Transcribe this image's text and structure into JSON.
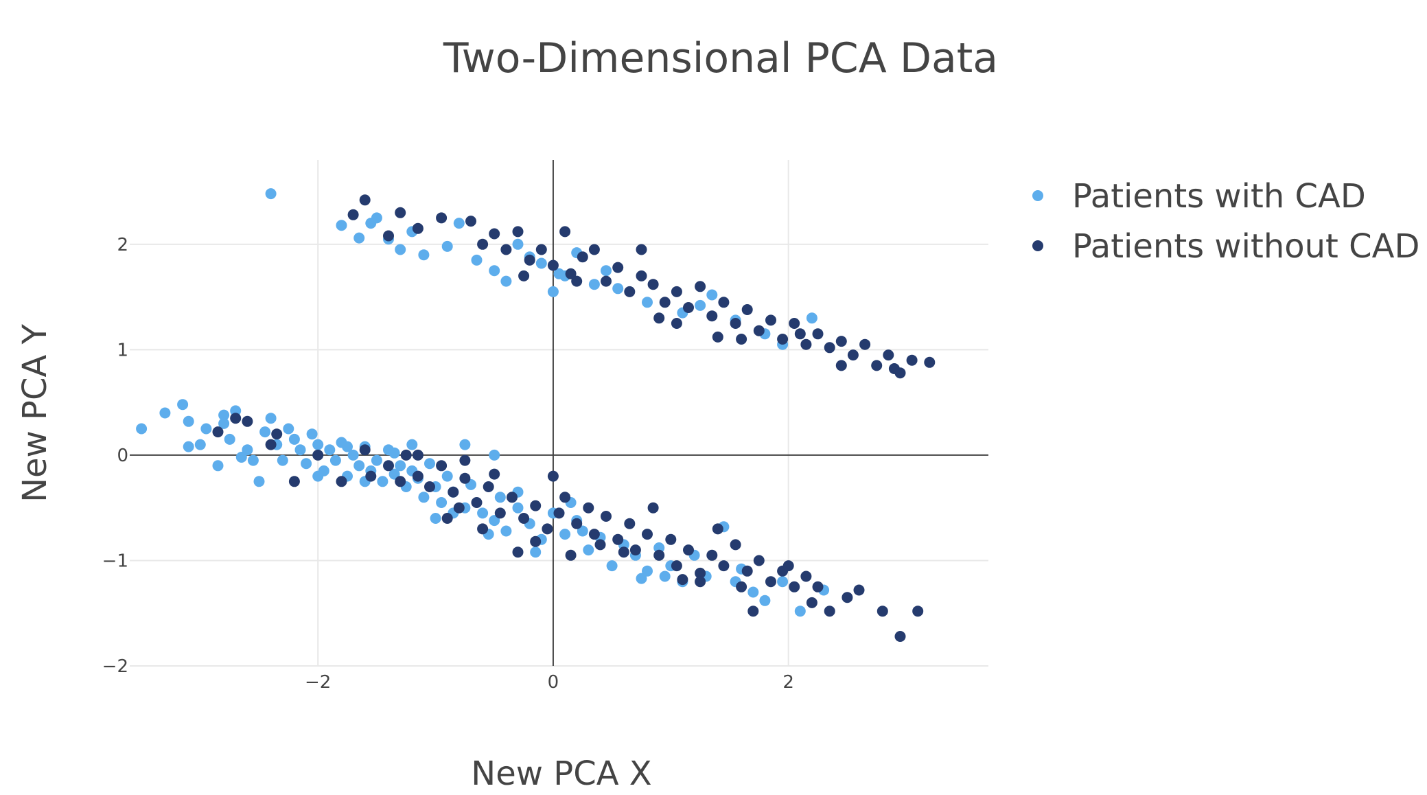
{
  "chart_data": {
    "type": "scatter",
    "title": "Two-Dimensional PCA Data",
    "xlabel": "New PCA X",
    "ylabel": "New PCA Y",
    "xlim": [
      -3.6,
      3.7
    ],
    "ylim": [
      -2.0,
      2.8
    ],
    "x_ticks": [
      -2,
      0,
      2
    ],
    "y_ticks": [
      -2,
      -1,
      0,
      1,
      2
    ],
    "x_tick_labels": [
      "−2",
      "0",
      "2"
    ],
    "y_tick_labels": [
      "−2",
      "−1",
      "0",
      "1",
      "2"
    ],
    "grid": true,
    "zero_lines": true,
    "legend_position": "top-right",
    "series": [
      {
        "name": "Patients with CAD",
        "color": "#5DADEC",
        "points": [
          [
            -2.4,
            2.48
          ],
          [
            -1.8,
            2.18
          ],
          [
            -1.65,
            2.06
          ],
          [
            -1.55,
            2.2
          ],
          [
            -1.4,
            2.05
          ],
          [
            -1.3,
            1.95
          ],
          [
            -1.2,
            2.12
          ],
          [
            -1.1,
            1.9
          ],
          [
            -0.9,
            1.98
          ],
          [
            -0.8,
            2.2
          ],
          [
            -0.65,
            1.85
          ],
          [
            -0.5,
            1.75
          ],
          [
            -0.3,
            2.0
          ],
          [
            -0.1,
            1.82
          ],
          [
            0.05,
            1.72
          ],
          [
            0.2,
            1.92
          ],
          [
            0.35,
            1.62
          ],
          [
            0.55,
            1.58
          ],
          [
            0.8,
            1.45
          ],
          [
            1.1,
            1.35
          ],
          [
            1.35,
            1.52
          ],
          [
            1.55,
            1.28
          ],
          [
            1.8,
            1.15
          ],
          [
            1.95,
            1.05
          ],
          [
            2.2,
            1.3
          ],
          [
            -0.4,
            1.65
          ],
          [
            0.0,
            1.55
          ],
          [
            0.45,
            1.75
          ],
          [
            1.25,
            1.42
          ],
          [
            -1.5,
            2.25
          ],
          [
            -0.2,
            1.88
          ],
          [
            0.1,
            1.7
          ],
          [
            -3.5,
            0.25
          ],
          [
            -3.3,
            0.4
          ],
          [
            -3.15,
            0.48
          ],
          [
            -3.1,
            0.32
          ],
          [
            -3.0,
            0.1
          ],
          [
            -2.95,
            0.25
          ],
          [
            -2.85,
            -0.1
          ],
          [
            -2.8,
            0.38
          ],
          [
            -2.75,
            0.15
          ],
          [
            -2.7,
            0.42
          ],
          [
            -2.6,
            0.05
          ],
          [
            -2.55,
            -0.05
          ],
          [
            -2.45,
            0.22
          ],
          [
            -2.4,
            0.35
          ],
          [
            -2.35,
            0.1
          ],
          [
            -2.3,
            -0.05
          ],
          [
            -2.25,
            0.25
          ],
          [
            -2.2,
            0.15
          ],
          [
            -2.15,
            0.05
          ],
          [
            -2.1,
            -0.08
          ],
          [
            -2.05,
            0.2
          ],
          [
            -2.0,
            0.1
          ],
          [
            -1.95,
            -0.15
          ],
          [
            -1.9,
            0.05
          ],
          [
            -1.85,
            -0.05
          ],
          [
            -1.8,
            0.12
          ],
          [
            -1.75,
            -0.2
          ],
          [
            -1.7,
            0.0
          ],
          [
            -1.65,
            -0.1
          ],
          [
            -1.6,
            0.08
          ],
          [
            -1.55,
            -0.15
          ],
          [
            -1.5,
            -0.05
          ],
          [
            -1.45,
            -0.25
          ],
          [
            -1.4,
            0.05
          ],
          [
            -1.35,
            -0.18
          ],
          [
            -1.3,
            -0.1
          ],
          [
            -1.25,
            -0.3
          ],
          [
            -1.2,
            -0.15
          ],
          [
            -1.15,
            -0.22
          ],
          [
            -1.1,
            -0.4
          ],
          [
            -1.0,
            -0.3
          ],
          [
            -0.95,
            -0.45
          ],
          [
            -0.9,
            -0.2
          ],
          [
            -0.85,
            -0.35
          ],
          [
            -0.75,
            -0.5
          ],
          [
            -0.7,
            -0.28
          ],
          [
            -0.6,
            -0.55
          ],
          [
            -0.5,
            -0.62
          ],
          [
            -0.45,
            -0.4
          ],
          [
            -0.4,
            -0.72
          ],
          [
            -0.3,
            -0.5
          ],
          [
            -0.2,
            -0.65
          ],
          [
            -0.1,
            -0.8
          ],
          [
            0.0,
            -0.55
          ],
          [
            0.1,
            -0.75
          ],
          [
            0.2,
            -0.62
          ],
          [
            0.3,
            -0.9
          ],
          [
            0.4,
            -0.78
          ],
          [
            0.5,
            -1.05
          ],
          [
            0.6,
            -0.85
          ],
          [
            0.7,
            -0.95
          ],
          [
            0.8,
            -1.1
          ],
          [
            0.9,
            -0.88
          ],
          [
            1.0,
            -1.05
          ],
          [
            1.1,
            -1.2
          ],
          [
            1.2,
            -0.95
          ],
          [
            1.3,
            -1.15
          ],
          [
            1.45,
            -0.68
          ],
          [
            1.6,
            -1.08
          ],
          [
            1.7,
            -1.3
          ],
          [
            1.8,
            -1.38
          ],
          [
            1.95,
            -1.2
          ],
          [
            2.1,
            -1.48
          ],
          [
            2.3,
            -1.28
          ],
          [
            -0.75,
            0.1
          ],
          [
            -0.5,
            0.0
          ],
          [
            -1.2,
            0.1
          ],
          [
            -2.5,
            -0.25
          ],
          [
            -1.0,
            -0.6
          ],
          [
            -0.15,
            -0.92
          ],
          [
            0.75,
            -1.17
          ],
          [
            -2.65,
            -0.02
          ],
          [
            -3.1,
            0.08
          ],
          [
            -1.75,
            0.08
          ],
          [
            -0.55,
            -0.75
          ],
          [
            -1.35,
            0.02
          ],
          [
            -2.0,
            -0.2
          ],
          [
            -1.6,
            -0.25
          ],
          [
            -0.85,
            -0.55
          ],
          [
            0.25,
            -0.72
          ],
          [
            -2.8,
            0.3
          ],
          [
            -1.05,
            -0.08
          ],
          [
            -0.3,
            -0.35
          ],
          [
            1.55,
            -1.2
          ],
          [
            0.95,
            -1.15
          ],
          [
            0.15,
            -0.45
          ]
        ]
      },
      {
        "name": "Patients without CAD",
        "color": "#253B6E",
        "points": [
          [
            -1.6,
            2.42
          ],
          [
            -1.7,
            2.28
          ],
          [
            -1.3,
            2.3
          ],
          [
            -1.15,
            2.15
          ],
          [
            -0.95,
            2.25
          ],
          [
            -0.7,
            2.22
          ],
          [
            -0.6,
            2.0
          ],
          [
            -0.5,
            2.1
          ],
          [
            -0.4,
            1.95
          ],
          [
            -0.3,
            2.12
          ],
          [
            -0.2,
            1.85
          ],
          [
            -0.1,
            1.95
          ],
          [
            0.0,
            1.8
          ],
          [
            0.1,
            2.12
          ],
          [
            0.15,
            1.72
          ],
          [
            0.25,
            1.88
          ],
          [
            0.35,
            1.95
          ],
          [
            0.45,
            1.65
          ],
          [
            0.55,
            1.78
          ],
          [
            0.65,
            1.55
          ],
          [
            0.75,
            1.7
          ],
          [
            0.85,
            1.62
          ],
          [
            0.95,
            1.45
          ],
          [
            1.05,
            1.55
          ],
          [
            1.15,
            1.4
          ],
          [
            1.25,
            1.6
          ],
          [
            1.35,
            1.32
          ],
          [
            1.45,
            1.45
          ],
          [
            1.55,
            1.25
          ],
          [
            1.65,
            1.38
          ],
          [
            1.75,
            1.18
          ],
          [
            1.85,
            1.28
          ],
          [
            1.95,
            1.1
          ],
          [
            2.05,
            1.25
          ],
          [
            2.15,
            1.05
          ],
          [
            2.25,
            1.15
          ],
          [
            2.35,
            1.02
          ],
          [
            2.45,
            1.08
          ],
          [
            2.55,
            0.95
          ],
          [
            2.65,
            1.05
          ],
          [
            2.75,
            0.85
          ],
          [
            2.85,
            0.95
          ],
          [
            2.95,
            0.78
          ],
          [
            3.05,
            0.9
          ],
          [
            3.2,
            0.88
          ],
          [
            2.45,
            0.85
          ],
          [
            1.4,
            1.12
          ],
          [
            0.2,
            1.65
          ],
          [
            -0.25,
            1.7
          ],
          [
            0.75,
            1.95
          ],
          [
            1.05,
            1.25
          ],
          [
            -1.4,
            2.08
          ],
          [
            0.9,
            1.3
          ],
          [
            1.6,
            1.1
          ],
          [
            2.1,
            1.15
          ],
          [
            2.9,
            0.82
          ],
          [
            -2.85,
            0.22
          ],
          [
            -2.7,
            0.35
          ],
          [
            -2.4,
            0.1
          ],
          [
            -2.2,
            -0.25
          ],
          [
            -2.0,
            0.0
          ],
          [
            -1.8,
            -0.25
          ],
          [
            -1.6,
            0.05
          ],
          [
            -1.4,
            -0.1
          ],
          [
            -1.25,
            0.0
          ],
          [
            -1.15,
            -0.2
          ],
          [
            -1.05,
            -0.3
          ],
          [
            -0.95,
            -0.1
          ],
          [
            -0.85,
            -0.35
          ],
          [
            -0.8,
            -0.5
          ],
          [
            -0.75,
            -0.22
          ],
          [
            -0.65,
            -0.45
          ],
          [
            -0.55,
            -0.3
          ],
          [
            -0.45,
            -0.55
          ],
          [
            -0.35,
            -0.4
          ],
          [
            -0.25,
            -0.6
          ],
          [
            -0.15,
            -0.48
          ],
          [
            -0.05,
            -0.7
          ],
          [
            0.05,
            -0.55
          ],
          [
            0.1,
            -0.4
          ],
          [
            0.2,
            -0.65
          ],
          [
            0.3,
            -0.5
          ],
          [
            0.35,
            -0.75
          ],
          [
            0.45,
            -0.58
          ],
          [
            0.55,
            -0.8
          ],
          [
            0.65,
            -0.65
          ],
          [
            0.7,
            -0.9
          ],
          [
            0.8,
            -0.75
          ],
          [
            0.9,
            -0.95
          ],
          [
            1.0,
            -0.8
          ],
          [
            1.05,
            -1.05
          ],
          [
            1.15,
            -0.9
          ],
          [
            1.25,
            -1.12
          ],
          [
            1.35,
            -0.95
          ],
          [
            1.45,
            -1.05
          ],
          [
            1.55,
            -0.85
          ],
          [
            1.65,
            -1.1
          ],
          [
            1.75,
            -1.0
          ],
          [
            1.85,
            -1.2
          ],
          [
            1.95,
            -1.1
          ],
          [
            2.05,
            -1.25
          ],
          [
            2.15,
            -1.15
          ],
          [
            2.25,
            -1.25
          ],
          [
            2.35,
            -1.48
          ],
          [
            2.5,
            -1.35
          ],
          [
            2.6,
            -1.28
          ],
          [
            2.2,
            -1.4
          ],
          [
            1.7,
            -1.48
          ],
          [
            2.8,
            -1.48
          ],
          [
            3.1,
            -1.48
          ],
          [
            2.95,
            -1.72
          ],
          [
            -0.3,
            -0.92
          ],
          [
            -0.15,
            -0.82
          ],
          [
            -0.9,
            -0.6
          ],
          [
            -1.15,
            0.0
          ],
          [
            -0.75,
            -0.05
          ],
          [
            -0.5,
            -0.18
          ],
          [
            0.0,
            -0.2
          ],
          [
            0.85,
            -0.5
          ],
          [
            1.4,
            -0.7
          ],
          [
            1.1,
            -1.18
          ],
          [
            1.25,
            -1.2
          ],
          [
            -2.6,
            0.32
          ],
          [
            -2.35,
            0.2
          ],
          [
            -1.55,
            -0.2
          ],
          [
            -1.3,
            -0.25
          ],
          [
            0.6,
            -0.92
          ],
          [
            0.4,
            -0.85
          ],
          [
            1.6,
            -1.25
          ],
          [
            2.0,
            -1.05
          ],
          [
            -0.6,
            -0.7
          ],
          [
            0.15,
            -0.95
          ]
        ]
      }
    ]
  }
}
